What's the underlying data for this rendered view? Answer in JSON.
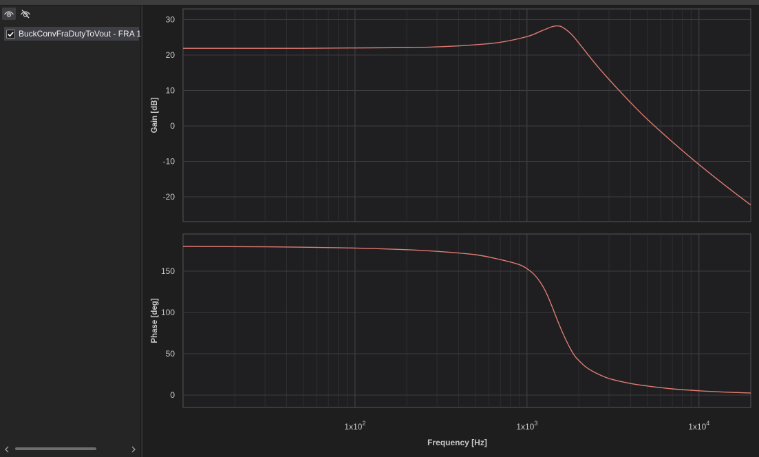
{
  "sidebar": {
    "toolbar": [
      {
        "icon": "eye-icon",
        "active": true
      },
      {
        "icon": "eye-slash-icon",
        "active": false
      }
    ],
    "traces": [
      {
        "label": "BuckConvFraDutyToVout - FRA 1",
        "checked": true
      }
    ]
  },
  "colors": {
    "trace": "#e07b73",
    "plot_bg": "#1f1f21",
    "grid": "#3d3d40",
    "text": "#c8c8c8"
  },
  "chart_data": {
    "type": "line",
    "x_scale": "log",
    "xlim": [
      10,
      20000
    ],
    "xlabel": "Frequency [Hz]",
    "x_tick_labels": [
      {
        "value": 100,
        "base": "1x10",
        "exp": "2"
      },
      {
        "value": 1000,
        "base": "1x10",
        "exp": "3"
      },
      {
        "value": 10000,
        "base": "1x10",
        "exp": "4"
      }
    ],
    "grid": true,
    "panels": [
      {
        "ylabel": "Gain [dB]",
        "ylim": [
          -27,
          33
        ],
        "yticks": [
          30,
          20,
          10,
          0,
          -10,
          -20
        ],
        "series": [
          {
            "x": [
              10,
              20,
              50,
              100,
              200,
              300,
              500,
              700,
              1000,
              1200,
              1400,
              1500,
              1600,
              1800,
              2000,
              2500,
              3000,
              4000,
              5000,
              7000,
              10000,
              15000,
              20000
            ],
            "y": [
              21.9,
              21.9,
              21.9,
              22.0,
              22.1,
              22.3,
              22.9,
              23.6,
              25.2,
              26.7,
              28.0,
              28.2,
              27.9,
              26.0,
              23.4,
              17.5,
              13.1,
              6.6,
              1.9,
              -4.5,
              -10.9,
              -17.7,
              -22.3
            ]
          }
        ]
      },
      {
        "ylabel": "Phase [deg]",
        "ylim": [
          -15,
          195
        ],
        "yticks": [
          150,
          100,
          50,
          0
        ],
        "series": [
          {
            "x": [
              10,
              30,
              50,
              100,
              200,
              300,
              500,
              700,
              900,
              1000,
              1100,
              1200,
              1300,
              1400,
              1500,
              1600,
              1700,
              1800,
              1900,
              2000,
              2200,
              2500,
              3000,
              4000,
              5000,
              7000,
              10000,
              15000,
              20000
            ],
            "y": [
              180,
              179.5,
              179,
              178,
              176,
              174,
              170,
              164,
              158,
              153,
              146,
              136,
              123,
              107,
              91,
              77,
              65,
              55,
              47,
              42,
              34,
              27,
              20,
              14,
              11,
              7.5,
              5.2,
              3.4,
              2.5
            ]
          }
        ]
      }
    ]
  }
}
